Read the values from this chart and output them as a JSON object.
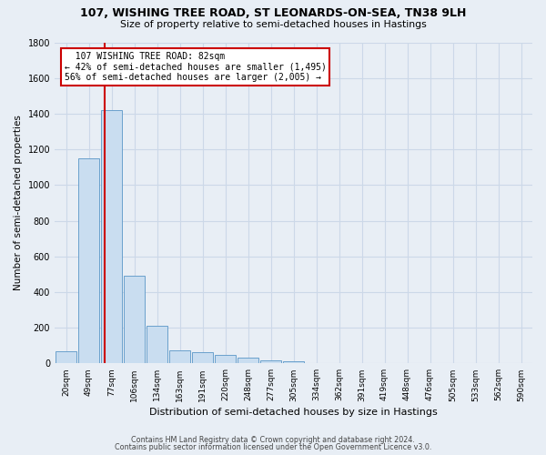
{
  "title1": "107, WISHING TREE ROAD, ST LEONARDS-ON-SEA, TN38 9LH",
  "title2": "Size of property relative to semi-detached houses in Hastings",
  "xlabel": "Distribution of semi-detached houses by size in Hastings",
  "ylabel": "Number of semi-detached properties",
  "bar_labels": [
    "20sqm",
    "49sqm",
    "77sqm",
    "106sqm",
    "134sqm",
    "163sqm",
    "191sqm",
    "220sqm",
    "248sqm",
    "277sqm",
    "305sqm",
    "334sqm",
    "362sqm",
    "391sqm",
    "419sqm",
    "448sqm",
    "476sqm",
    "505sqm",
    "533sqm",
    "562sqm",
    "590sqm"
  ],
  "bar_values": [
    70,
    1150,
    1420,
    490,
    210,
    75,
    62,
    50,
    30,
    15,
    10,
    0,
    0,
    0,
    0,
    0,
    0,
    0,
    0,
    0,
    0
  ],
  "bar_color": "#c9ddf0",
  "bar_edge_color": "#6aa0cc",
  "grid_color": "#ccd8e8",
  "background_color": "#e8eef5",
  "plot_background": "#e8eef5",
  "vline_color": "#cc0000",
  "annotation_title": "107 WISHING TREE ROAD: 82sqm",
  "annotation_line1": "← 42% of semi-detached houses are smaller (1,495)",
  "annotation_line2": "56% of semi-detached houses are larger (2,005) →",
  "annotation_box_color": "#ffffff",
  "annotation_box_edge": "#cc0000",
  "ylim": [
    0,
    1800
  ],
  "yticks": [
    0,
    200,
    400,
    600,
    800,
    1000,
    1200,
    1400,
    1600,
    1800
  ],
  "footer1": "Contains HM Land Registry data © Crown copyright and database right 2024.",
  "footer2": "Contains public sector information licensed under the Open Government Licence v3.0."
}
